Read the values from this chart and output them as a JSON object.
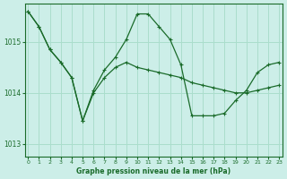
{
  "bg_color": "#cceee8",
  "grid_color": "#aaddcc",
  "line_color": "#1a6b2a",
  "marker_color": "#1a6b2a",
  "text_color": "#1a6b2a",
  "xlabel": "Graphe pression niveau de la mer (hPa)",
  "ylim": [
    1012.75,
    1015.75
  ],
  "xlim": [
    -0.3,
    23.3
  ],
  "yticks": [
    1013,
    1014,
    1015
  ],
  "xticks": [
    0,
    1,
    2,
    3,
    4,
    5,
    6,
    7,
    8,
    9,
    10,
    11,
    12,
    13,
    14,
    15,
    16,
    17,
    18,
    19,
    20,
    21,
    22,
    23
  ],
  "series": [
    {
      "x": [
        0,
        1,
        2,
        3,
        4,
        5,
        6,
        7,
        8,
        9,
        10,
        11,
        12,
        13,
        14,
        15,
        16,
        17,
        18,
        19,
        20,
        21,
        22,
        23
      ],
      "y": [
        1015.6,
        1015.3,
        1014.85,
        1014.6,
        1014.3,
        1013.45,
        1014.0,
        1014.3,
        1014.5,
        1014.6,
        1014.5,
        1014.45,
        1014.4,
        1014.35,
        1014.3,
        1014.2,
        1014.15,
        1014.1,
        1014.05,
        1014.0,
        1014.0,
        1014.05,
        1014.1,
        1014.15
      ]
    },
    {
      "x": [
        0,
        1,
        2,
        3,
        4,
        5,
        6,
        7,
        8,
        9,
        10,
        11,
        12,
        13,
        14,
        15,
        16,
        17,
        18,
        19,
        20,
        21,
        22,
        23
      ],
      "y": [
        1015.6,
        1015.3,
        1014.85,
        1014.6,
        1014.3,
        1013.45,
        1014.05,
        1014.45,
        1014.7,
        1015.05,
        1015.55,
        1015.55,
        1015.3,
        1015.05,
        1014.55,
        1013.55,
        1013.55,
        1013.55,
        1013.6,
        1013.85,
        1014.05,
        1014.4,
        1014.55,
        1014.6
      ]
    },
    {
      "x": [
        0,
        1,
        9,
        10,
        11,
        12,
        13,
        14,
        19,
        20,
        21,
        22,
        23
      ],
      "y": [
        1015.6,
        1015.3,
        1015.05,
        1015.55,
        1015.55,
        1015.3,
        1015.05,
        1014.55,
        1013.85,
        1014.05,
        1014.4,
        1014.55,
        1014.6
      ]
    }
  ]
}
